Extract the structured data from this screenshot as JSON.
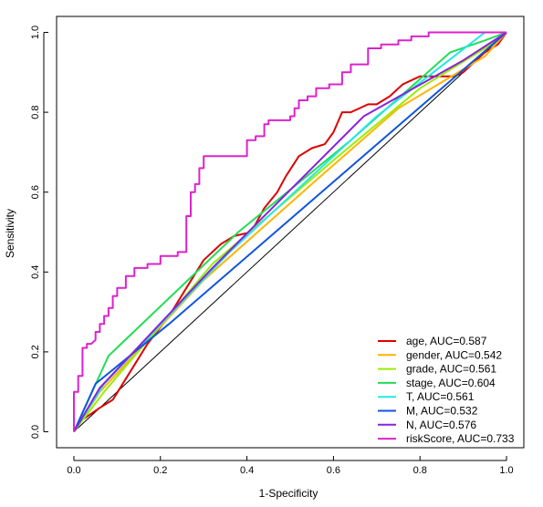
{
  "chart_data": {
    "type": "line",
    "title": "",
    "xlabel": "1-Specificity",
    "ylabel": "Sensitivity",
    "xlim": [
      -0.04,
      1.04
    ],
    "ylim": [
      -0.04,
      1.04
    ],
    "xticks": [
      0.0,
      0.2,
      0.4,
      0.6,
      0.8,
      1.0
    ],
    "xtick_labels": [
      "0.0",
      "0.2",
      "0.4",
      "0.6",
      "0.8",
      "1.0"
    ],
    "yticks": [
      0.0,
      0.2,
      0.4,
      0.6,
      0.8,
      1.0
    ],
    "ytick_labels": [
      "0.0",
      "0.2",
      "0.4",
      "0.6",
      "0.8",
      "1.0"
    ],
    "legend_position": "bottom-right",
    "grid": false,
    "reference_line": {
      "x": [
        0,
        1
      ],
      "y": [
        0,
        1
      ],
      "color": "#000000"
    },
    "series": [
      {
        "name": "age, AUC=0.587",
        "color": "#dd0000",
        "x": [
          0.0,
          0.02,
          0.06,
          0.09,
          0.13,
          0.17,
          0.22,
          0.26,
          0.3,
          0.34,
          0.37,
          0.41,
          0.44,
          0.47,
          0.49,
          0.52,
          0.55,
          0.58,
          0.6,
          0.62,
          0.64,
          0.68,
          0.7,
          0.73,
          0.76,
          0.8,
          0.84,
          0.88,
          0.9,
          0.93,
          0.95,
          0.98,
          1.0
        ],
        "y": [
          0.0,
          0.03,
          0.06,
          0.08,
          0.15,
          0.22,
          0.29,
          0.36,
          0.43,
          0.47,
          0.49,
          0.5,
          0.56,
          0.6,
          0.64,
          0.69,
          0.71,
          0.72,
          0.75,
          0.8,
          0.8,
          0.82,
          0.82,
          0.84,
          0.87,
          0.89,
          0.89,
          0.89,
          0.9,
          0.93,
          0.95,
          0.97,
          1.0
        ]
      },
      {
        "name": "gender, AUC=0.542",
        "color": "#ffb400",
        "x": [
          0.0,
          0.06,
          0.3,
          0.56,
          0.75,
          0.95,
          1.0
        ],
        "y": [
          0.0,
          0.1,
          0.38,
          0.63,
          0.81,
          0.94,
          1.0
        ]
      },
      {
        "name": "grade, AUC=0.561",
        "color": "#99ee00",
        "x": [
          0.0,
          0.07,
          0.32,
          0.6,
          0.8,
          0.95,
          1.0
        ],
        "y": [
          0.0,
          0.1,
          0.42,
          0.68,
          0.86,
          0.96,
          1.0
        ]
      },
      {
        "name": "stage, AUC=0.604",
        "color": "#22dd55",
        "x": [
          0.0,
          0.08,
          0.38,
          0.64,
          0.87,
          0.95,
          1.0
        ],
        "y": [
          0.0,
          0.19,
          0.5,
          0.73,
          0.95,
          0.98,
          1.0
        ]
      },
      {
        "name": "T, AUC=0.561",
        "color": "#22e8e8",
        "x": [
          0.0,
          0.07,
          0.36,
          0.7,
          0.95,
          1.0
        ],
        "y": [
          0.0,
          0.12,
          0.45,
          0.79,
          1.0,
          1.0
        ]
      },
      {
        "name": "M, AUC=0.532",
        "color": "#1155dd",
        "x": [
          0.0,
          0.05,
          0.22,
          1.0
        ],
        "y": [
          0.0,
          0.12,
          0.27,
          1.0
        ]
      },
      {
        "name": "N, AUC=0.576",
        "color": "#8822dd",
        "x": [
          0.0,
          0.06,
          0.32,
          0.67,
          0.9,
          1.0
        ],
        "y": [
          0.0,
          0.11,
          0.41,
          0.79,
          0.93,
          1.0
        ]
      },
      {
        "name": "riskScore, AUC=0.733",
        "color": "#dd22cc",
        "x": [
          0.0,
          0.0,
          0.01,
          0.01,
          0.02,
          0.02,
          0.03,
          0.03,
          0.04,
          0.05,
          0.05,
          0.06,
          0.06,
          0.07,
          0.07,
          0.08,
          0.08,
          0.09,
          0.09,
          0.1,
          0.1,
          0.12,
          0.12,
          0.14,
          0.14,
          0.17,
          0.17,
          0.2,
          0.2,
          0.24,
          0.24,
          0.26,
          0.26,
          0.27,
          0.27,
          0.28,
          0.28,
          0.29,
          0.29,
          0.3,
          0.3,
          0.4,
          0.4,
          0.42,
          0.42,
          0.44,
          0.44,
          0.45,
          0.45,
          0.5,
          0.5,
          0.51,
          0.51,
          0.52,
          0.52,
          0.54,
          0.54,
          0.56,
          0.56,
          0.59,
          0.59,
          0.62,
          0.62,
          0.64,
          0.64,
          0.68,
          0.68,
          0.71,
          0.71,
          0.75,
          0.75,
          0.78,
          0.78,
          0.82,
          0.82,
          0.86,
          0.86,
          0.9,
          0.9,
          1.0
        ],
        "y": [
          0.0,
          0.1,
          0.1,
          0.14,
          0.14,
          0.21,
          0.21,
          0.22,
          0.22,
          0.23,
          0.25,
          0.25,
          0.27,
          0.27,
          0.29,
          0.29,
          0.31,
          0.31,
          0.34,
          0.34,
          0.36,
          0.36,
          0.39,
          0.39,
          0.41,
          0.41,
          0.42,
          0.42,
          0.44,
          0.44,
          0.45,
          0.45,
          0.54,
          0.54,
          0.6,
          0.6,
          0.62,
          0.62,
          0.66,
          0.66,
          0.69,
          0.69,
          0.73,
          0.73,
          0.74,
          0.74,
          0.77,
          0.77,
          0.78,
          0.78,
          0.79,
          0.79,
          0.81,
          0.81,
          0.83,
          0.83,
          0.84,
          0.84,
          0.86,
          0.86,
          0.87,
          0.87,
          0.9,
          0.9,
          0.92,
          0.92,
          0.96,
          0.96,
          0.97,
          0.97,
          0.98,
          0.98,
          0.99,
          0.99,
          1.0,
          1.0,
          1.0,
          1.0,
          1.0,
          1.0
        ]
      }
    ]
  }
}
